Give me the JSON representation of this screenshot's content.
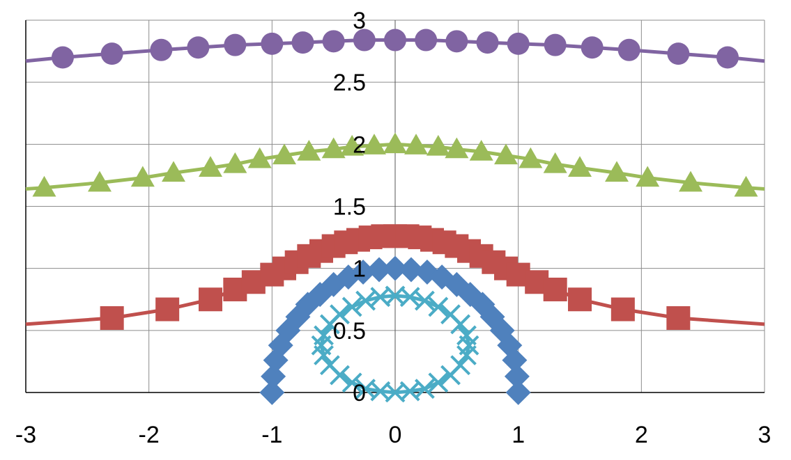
{
  "chart_data": {
    "type": "line",
    "title": "",
    "xlabel": "",
    "ylabel": "",
    "xlim": [
      -3,
      3
    ],
    "ylim": [
      0,
      3
    ],
    "x_ticks": [
      "-3",
      "-2",
      "-1",
      "0",
      "1",
      "2",
      "3"
    ],
    "y_ticks": [
      "0",
      "0.5",
      "1",
      "1.5",
      "2",
      "2.5",
      "3"
    ],
    "grid": true,
    "legend": "none",
    "series": [
      {
        "marker": "circle",
        "color": "#8064a2",
        "x": [
          -3,
          -2.7,
          -2.3,
          -1.9,
          -1.6,
          -1.3,
          -1.0,
          -0.75,
          -0.5,
          -0.25,
          0,
          0.25,
          0.5,
          0.75,
          1.0,
          1.3,
          1.6,
          1.9,
          2.3,
          2.7,
          3
        ],
        "y": [
          2.67,
          2.7,
          2.73,
          2.76,
          2.78,
          2.8,
          2.81,
          2.82,
          2.83,
          2.84,
          2.84,
          2.84,
          2.83,
          2.82,
          2.81,
          2.8,
          2.78,
          2.76,
          2.73,
          2.7,
          2.67
        ],
        "marker_indices": [
          1,
          2,
          3,
          4,
          5,
          6,
          7,
          8,
          9,
          10,
          11,
          12,
          13,
          14,
          15,
          16,
          17,
          18,
          19
        ]
      },
      {
        "marker": "triangle",
        "color": "#9bbb59",
        "x": [
          -3,
          -2.85,
          -2.4,
          -2.05,
          -1.8,
          -1.5,
          -1.3,
          -1.1,
          -0.9,
          -0.7,
          -0.5,
          -0.35,
          -0.17,
          0,
          0.17,
          0.35,
          0.5,
          0.7,
          0.9,
          1.1,
          1.3,
          1.5,
          1.8,
          2.05,
          2.4,
          2.85,
          3
        ],
        "y": [
          1.64,
          1.65,
          1.69,
          1.73,
          1.77,
          1.81,
          1.84,
          1.88,
          1.91,
          1.94,
          1.96,
          1.98,
          1.99,
          2.0,
          1.99,
          1.98,
          1.96,
          1.94,
          1.91,
          1.88,
          1.84,
          1.81,
          1.77,
          1.73,
          1.69,
          1.65,
          1.64
        ],
        "marker_indices": [
          1,
          2,
          3,
          4,
          5,
          6,
          7,
          8,
          9,
          10,
          11,
          12,
          13,
          14,
          15,
          16,
          17,
          18,
          19,
          20,
          21,
          22,
          23,
          24,
          25
        ]
      },
      {
        "marker": "square",
        "color": "#c0504d",
        "x": [
          -3,
          -2.3,
          -1.85,
          -1.5,
          -1.3,
          -1.15,
          -1.0,
          -0.9,
          -0.8,
          -0.7,
          -0.6,
          -0.5,
          -0.4,
          -0.3,
          -0.2,
          -0.1,
          0,
          0.1,
          0.2,
          0.3,
          0.4,
          0.5,
          0.6,
          0.7,
          0.8,
          0.9,
          1.0,
          1.15,
          1.3,
          1.5,
          1.85,
          2.3,
          3
        ],
        "y": [
          0.55,
          0.6,
          0.67,
          0.75,
          0.83,
          0.89,
          0.95,
          1.0,
          1.05,
          1.1,
          1.14,
          1.18,
          1.21,
          1.23,
          1.25,
          1.26,
          1.26,
          1.26,
          1.25,
          1.23,
          1.21,
          1.18,
          1.14,
          1.1,
          1.05,
          1.0,
          0.95,
          0.89,
          0.83,
          0.75,
          0.67,
          0.6,
          0.55
        ],
        "marker_indices": [
          1,
          2,
          3,
          4,
          5,
          6,
          7,
          8,
          9,
          10,
          11,
          12,
          13,
          14,
          15,
          16,
          17,
          18,
          19,
          20,
          21,
          22,
          23,
          24,
          25,
          26,
          27,
          28,
          29,
          30,
          31
        ]
      },
      {
        "marker": "diamond",
        "color": "#4f81bd",
        "x": [
          -1.0,
          -0.99,
          -0.97,
          -0.93,
          -0.87,
          -0.79,
          -0.71,
          -0.61,
          -0.5,
          -0.38,
          -0.26,
          -0.13,
          0,
          0.13,
          0.26,
          0.38,
          0.5,
          0.61,
          0.71,
          0.79,
          0.87,
          0.93,
          0.97,
          0.99,
          1.0
        ],
        "y": [
          0,
          0.13,
          0.26,
          0.38,
          0.5,
          0.61,
          0.71,
          0.79,
          0.87,
          0.93,
          0.97,
          0.99,
          1.0,
          0.99,
          0.97,
          0.93,
          0.87,
          0.79,
          0.71,
          0.61,
          0.5,
          0.38,
          0.26,
          0.13,
          0
        ],
        "marker_indices": [
          0,
          1,
          2,
          3,
          4,
          5,
          6,
          7,
          8,
          9,
          10,
          11,
          12,
          13,
          14,
          15,
          16,
          17,
          18,
          19,
          20,
          21,
          22,
          23,
          24
        ]
      },
      {
        "marker": "x",
        "color": "#4bacc6",
        "x": [
          0,
          0.12,
          0.24,
          0.35,
          0.45,
          0.53,
          0.58,
          0.6,
          0.58,
          0.53,
          0.45,
          0.35,
          0.24,
          0.12,
          0,
          -0.12,
          -0.24,
          -0.35,
          -0.45,
          -0.53,
          -0.58,
          -0.6,
          -0.58,
          -0.53,
          -0.45,
          -0.35,
          -0.24,
          -0.12
        ],
        "y": [
          0.78,
          0.77,
          0.74,
          0.69,
          0.63,
          0.55,
          0.46,
          0.38,
          0.3,
          0.22,
          0.14,
          0.08,
          0.03,
          0.01,
          0,
          0.01,
          0.03,
          0.08,
          0.14,
          0.22,
          0.3,
          0.38,
          0.46,
          0.55,
          0.63,
          0.69,
          0.74,
          0.77
        ],
        "closed": true,
        "marker_indices": [
          0,
          1,
          2,
          3,
          4,
          5,
          6,
          7,
          8,
          9,
          10,
          11,
          12,
          13,
          14,
          15,
          16,
          17,
          18,
          19,
          20,
          21,
          22,
          23,
          24,
          25,
          26,
          27
        ]
      }
    ]
  }
}
